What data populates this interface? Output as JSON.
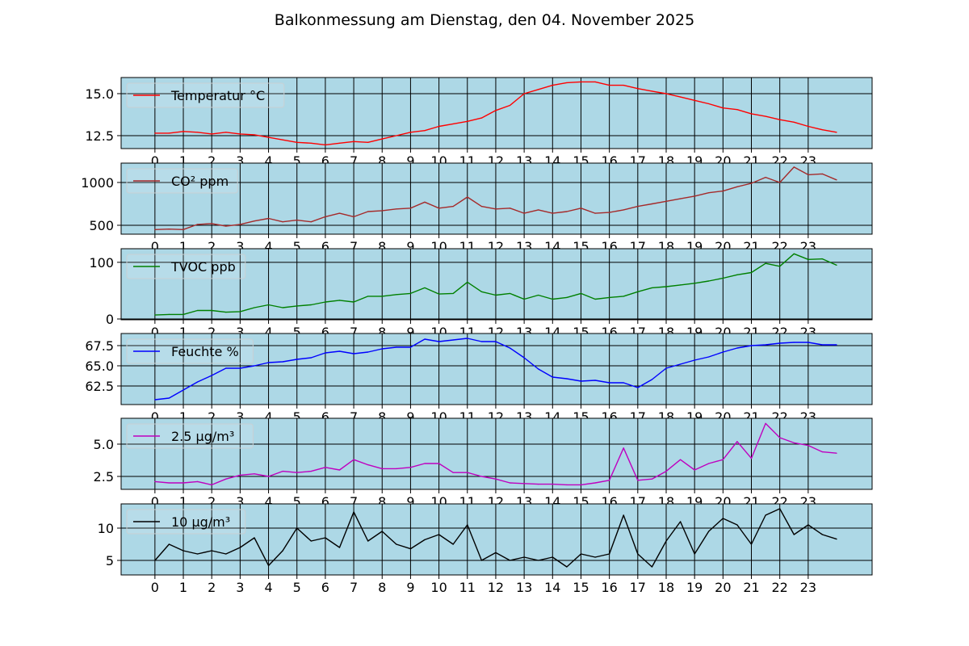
{
  "chart_data": {
    "type": "line",
    "title": "Balkonmessung am Dienstag, den 04. November 2025",
    "xlabel": "",
    "x_ticks": [
      "0",
      "1",
      "2",
      "3",
      "4",
      "5",
      "6",
      "7",
      "8",
      "9",
      "10",
      "11",
      "12",
      "13",
      "14",
      "15",
      "16",
      "17",
      "18",
      "19",
      "20",
      "21",
      "22",
      "23"
    ],
    "xlim": [
      -1.19,
      25.25
    ],
    "x": [
      0,
      0.5,
      1,
      1.5,
      2,
      2.5,
      3,
      3.5,
      4,
      4.5,
      5,
      5.5,
      6,
      6.5,
      7,
      7.5,
      8,
      8.5,
      9,
      9.5,
      10,
      10.5,
      11,
      11.5,
      12,
      12.5,
      13,
      13.5,
      14,
      14.5,
      15,
      15.5,
      16,
      16.5,
      17,
      17.5,
      18,
      18.5,
      19,
      19.5,
      20,
      20.5,
      21,
      21.5,
      22,
      22.5,
      23,
      23.5,
      24
    ],
    "grid": true,
    "background": "#add8e6",
    "subplots": [
      {
        "legend": "Temperatur °C",
        "color": "#ff0000",
        "ylim": [
          11.73,
          15.96
        ],
        "y_ticks": [
          12.5,
          15.0
        ],
        "y_tick_labels": [
          "12.5",
          "15.0"
        ],
        "legend_position": "upper-left",
        "values": [
          12.65,
          12.65,
          12.75,
          12.7,
          12.6,
          12.7,
          12.6,
          12.55,
          12.4,
          12.25,
          12.1,
          12.05,
          11.95,
          12.05,
          12.15,
          12.1,
          12.3,
          12.5,
          12.7,
          12.8,
          13.05,
          13.2,
          13.35,
          13.55,
          14.0,
          14.3,
          15.0,
          15.25,
          15.5,
          15.65,
          15.7,
          15.7,
          15.5,
          15.5,
          15.3,
          15.15,
          15.0,
          14.8,
          14.6,
          14.4,
          14.15,
          14.05,
          13.8,
          13.65,
          13.45,
          13.3,
          13.05,
          12.85,
          12.7
        ]
      },
      {
        "legend": "CO² ppm",
        "color": "#a52a2a",
        "ylim": [
          396,
          1226
        ],
        "y_ticks": [
          500,
          1000
        ],
        "y_tick_labels": [
          "500",
          "1000"
        ],
        "legend_position": "upper-left",
        "values": [
          450,
          455,
          450,
          510,
          520,
          490,
          510,
          550,
          580,
          540,
          560,
          540,
          600,
          640,
          600,
          660,
          670,
          690,
          700,
          770,
          700,
          720,
          830,
          720,
          690,
          700,
          640,
          680,
          640,
          660,
          700,
          640,
          650,
          680,
          720,
          750,
          780,
          810,
          840,
          880,
          900,
          950,
          990,
          1060,
          1000,
          1180,
          1090,
          1100,
          1030
        ]
      },
      {
        "legend": "TVOC ppb",
        "color": "#008000",
        "ylim": [
          -1.4,
          124
        ],
        "y_ticks": [
          0,
          100
        ],
        "y_tick_labels": [
          "0",
          "100"
        ],
        "legend_position": "upper-left",
        "values": [
          7,
          8,
          8,
          15,
          15,
          12,
          13,
          20,
          25,
          20,
          23,
          25,
          30,
          33,
          30,
          40,
          40,
          43,
          45,
          55,
          44,
          45,
          65,
          48,
          42,
          45,
          35,
          42,
          35,
          38,
          45,
          35,
          38,
          40,
          48,
          55,
          57,
          60,
          63,
          67,
          72,
          78,
          82,
          98,
          93,
          115,
          105,
          106,
          95
        ]
      },
      {
        "legend": "Feuchte %",
        "color": "#0000ff",
        "ylim": [
          60.2,
          69.0
        ],
        "y_ticks": [
          62.5,
          65.0,
          67.5
        ],
        "y_tick_labels": [
          "62.5",
          "65.0",
          "67.5"
        ],
        "legend_position": "upper-left",
        "values": [
          60.8,
          61.0,
          62.0,
          63.0,
          63.8,
          64.7,
          64.7,
          65.0,
          65.4,
          65.5,
          65.8,
          66.0,
          66.6,
          66.8,
          66.5,
          66.7,
          67.1,
          67.3,
          67.3,
          68.3,
          68.0,
          68.2,
          68.4,
          68.0,
          68.0,
          67.2,
          66.0,
          64.6,
          63.6,
          63.4,
          63.1,
          63.2,
          62.9,
          62.9,
          62.3,
          63.3,
          64.7,
          65.2,
          65.7,
          66.1,
          66.7,
          67.2,
          67.5,
          67.6,
          67.8,
          67.9,
          67.9,
          67.6,
          67.6
        ]
      },
      {
        "legend": "2.5 µg/m³",
        "color": "#bf00bf",
        "ylim": [
          1.5,
          7.0
        ],
        "y_ticks": [
          2.5,
          5.0
        ],
        "y_tick_labels": [
          "2.5",
          "5.0"
        ],
        "legend_position": "upper-left",
        "values": [
          2.1,
          2.0,
          2.0,
          2.1,
          1.85,
          2.3,
          2.6,
          2.7,
          2.5,
          2.9,
          2.8,
          2.9,
          3.2,
          3.0,
          3.8,
          3.4,
          3.1,
          3.1,
          3.2,
          3.5,
          3.5,
          2.8,
          2.8,
          2.5,
          2.3,
          2.0,
          1.95,
          1.9,
          1.9,
          1.85,
          1.85,
          2.0,
          2.2,
          4.7,
          2.2,
          2.3,
          2.9,
          3.8,
          3.0,
          3.5,
          3.8,
          5.2,
          3.9,
          6.6,
          5.5,
          5.1,
          4.9,
          4.4,
          4.3
        ]
      },
      {
        "legend": "10 µg/m³",
        "color": "#000000",
        "ylim": [
          2.75,
          13.75
        ],
        "y_ticks": [
          5,
          10
        ],
        "y_tick_labels": [
          "5",
          "10"
        ],
        "legend_position": "upper-left",
        "values": [
          5.0,
          7.5,
          6.5,
          6.0,
          6.5,
          6.0,
          7.0,
          8.5,
          4.2,
          6.5,
          10.0,
          8.0,
          8.5,
          7.0,
          12.5,
          8.0,
          9.5,
          7.5,
          6.8,
          8.2,
          9.0,
          7.5,
          10.5,
          5.0,
          6.2,
          5.0,
          5.5,
          5.0,
          5.5,
          4.0,
          6.0,
          5.5,
          6.0,
          12.0,
          6.0,
          4.0,
          8.0,
          11.0,
          6.0,
          9.5,
          11.5,
          10.5,
          7.5,
          12.0,
          13.0,
          9.0,
          10.5,
          9.0,
          8.3
        ]
      }
    ]
  }
}
